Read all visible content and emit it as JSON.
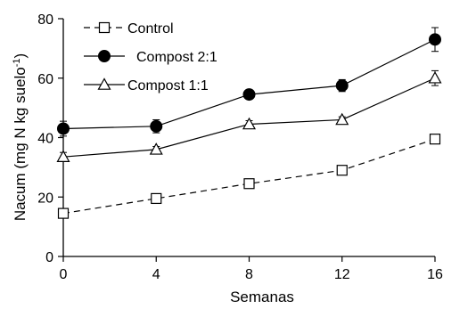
{
  "chart_data": {
    "type": "line",
    "xlabel": "Semanas",
    "ylabel": "Nacum (mg N kg suelo",
    "ylabel_sup": "-1",
    "ylabel_close": ")",
    "xlim": [
      0,
      16
    ],
    "ylim": [
      0,
      80
    ],
    "xticks": [
      0,
      4,
      8,
      12,
      16
    ],
    "yticks": [
      0,
      20,
      40,
      60,
      80
    ],
    "grid": false,
    "legend_position": "top-left",
    "x": [
      0,
      4,
      8,
      12,
      16
    ],
    "series": [
      {
        "name": "Control",
        "values": [
          14.5,
          19.5,
          24.5,
          29,
          39.5
        ],
        "errors": [
          0.6,
          0.6,
          0.6,
          1.5,
          1.5
        ],
        "marker": "open-square",
        "line_style": "dashed",
        "color": "#000000"
      },
      {
        "name": "Compost 2:1",
        "values": [
          43,
          43.8,
          54.5,
          57.5,
          73
        ],
        "errors": [
          2.5,
          2.2,
          0.8,
          2.0,
          4.0
        ],
        "marker": "filled-circle",
        "line_style": "solid",
        "color": "#000000"
      },
      {
        "name": "Compost 1:1",
        "values": [
          33.5,
          36,
          44.5,
          46,
          60
        ],
        "errors": [
          1.5,
          1.0,
          1.2,
          1.0,
          2.5
        ],
        "marker": "open-triangle",
        "line_style": "solid",
        "color": "#000000"
      }
    ]
  }
}
